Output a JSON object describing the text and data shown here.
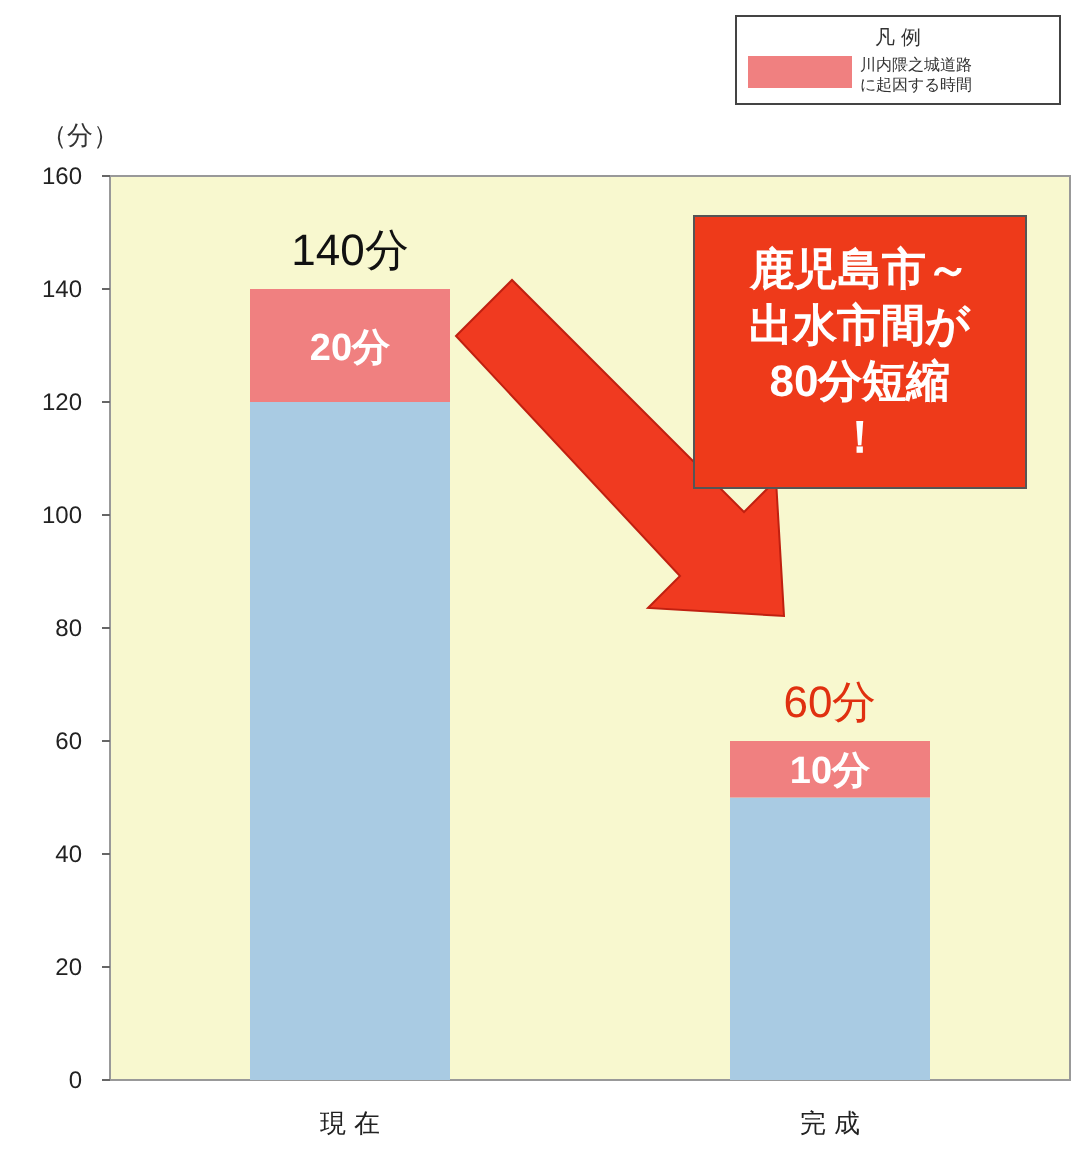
{
  "chart_data": {
    "type": "bar",
    "stacked": true,
    "ylabel": "（分）",
    "categories": [
      "現 在",
      "完 成"
    ],
    "series": [
      {
        "color": "#a9cbe3",
        "values": [
          120,
          50
        ]
      },
      {
        "name": "川内隈之城道路に起因する時間",
        "color": "#f08080",
        "values": [
          20,
          10
        ],
        "value_labels": [
          "20分",
          "10分"
        ]
      }
    ],
    "totals": [
      "140分",
      "60分"
    ],
    "ylim": [
      0,
      160
    ],
    "yticks": [
      0,
      20,
      40,
      60,
      80,
      100,
      120,
      140,
      160
    ],
    "grid": false,
    "legend": "top right",
    "legend_title": "凡 例",
    "annotations": [
      "鹿児島市～出水市間が80分短縮！"
    ]
  }
}
